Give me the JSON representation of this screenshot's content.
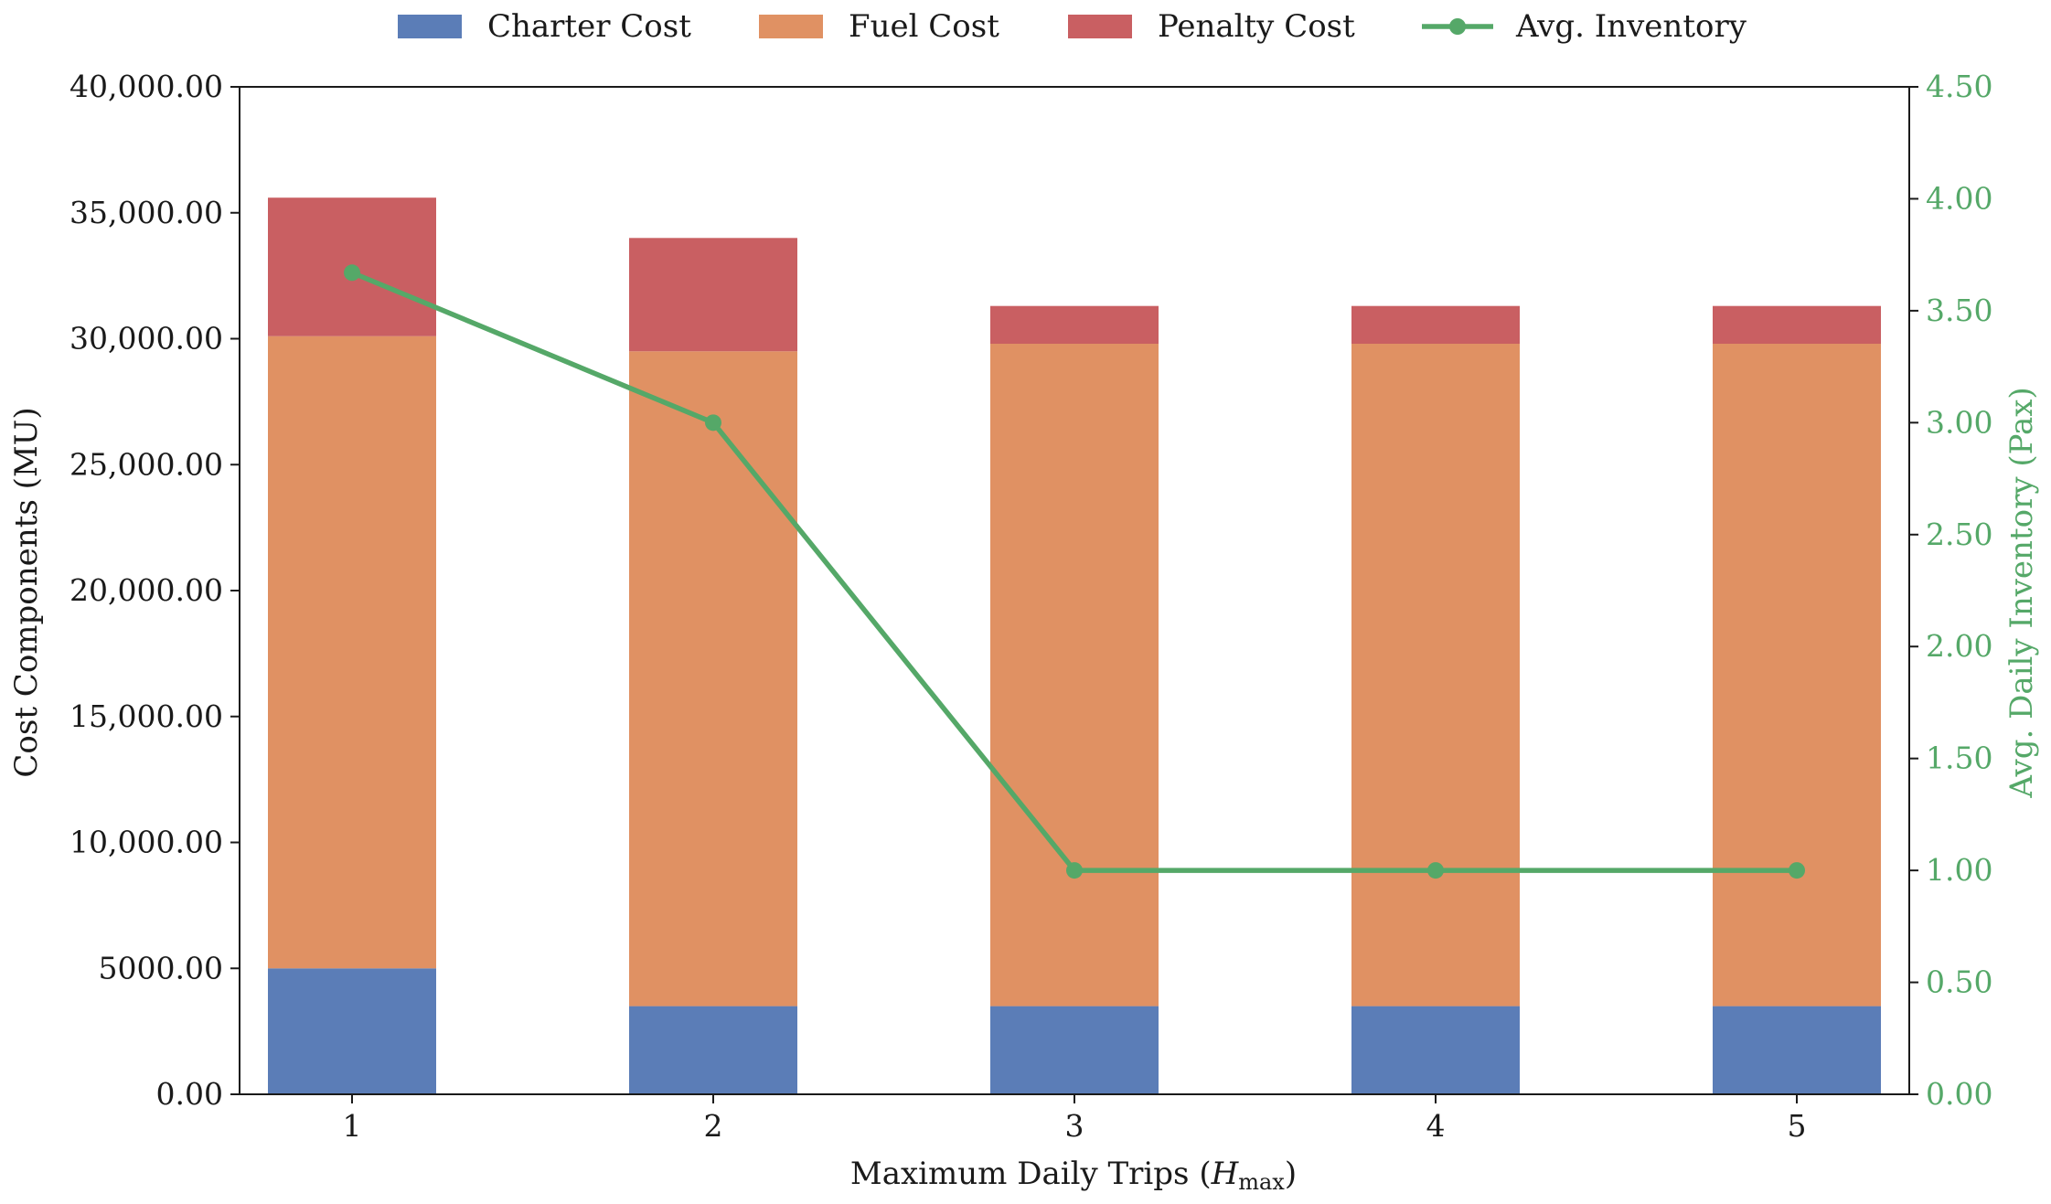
{
  "chart_data": {
    "type": "bar",
    "stacked": true,
    "categories": [
      "1",
      "2",
      "3",
      "4",
      "5"
    ],
    "series": [
      {
        "name": "Charter Cost",
        "values": [
          5000,
          3500,
          3500,
          3500,
          3500
        ],
        "color": "#5b7db7",
        "axis": "left"
      },
      {
        "name": "Fuel Cost",
        "values": [
          25100,
          26000,
          26300,
          26300,
          26300
        ],
        "color": "#e09163",
        "axis": "left"
      },
      {
        "name": "Penalty Cost",
        "values": [
          5500,
          4500,
          1500,
          1500,
          1500
        ],
        "color": "#c95f62",
        "axis": "left"
      },
      {
        "name": "Avg. Inventory",
        "type": "line",
        "values": [
          3.67,
          3.0,
          1.0,
          1.0,
          1.0
        ],
        "color": "#55a868",
        "axis": "right"
      }
    ],
    "xlabel_main": "Maximum Daily Trips (",
    "xlabel_var": "H",
    "xlabel_sub": "max",
    "xlabel_close": ")",
    "ylabel": "Cost Components (MU)",
    "ylabel_right": "Avg. Daily Inventory (Pax)",
    "ylim": [
      0,
      40000
    ],
    "ylim_right": [
      0,
      4.5
    ],
    "yticks": [
      0,
      5000,
      10000,
      15000,
      20000,
      25000,
      30000,
      35000,
      40000
    ],
    "ytick_labels": [
      "0.00",
      "5000.00",
      "10,000.00",
      "15,000.00",
      "20,000.00",
      "25,000.00",
      "30,000.00",
      "35,000.00",
      "40,000.00"
    ],
    "yticks_right": [
      0,
      0.5,
      1,
      1.5,
      2,
      2.5,
      3,
      3.5,
      4,
      4.5
    ],
    "ytick_labels_right": [
      "0.00",
      "0.50",
      "1.00",
      "1.50",
      "2.00",
      "2.50",
      "3.00",
      "3.50",
      "4.00",
      "4.50"
    ],
    "legend_position": "top-center",
    "grid": false
  }
}
